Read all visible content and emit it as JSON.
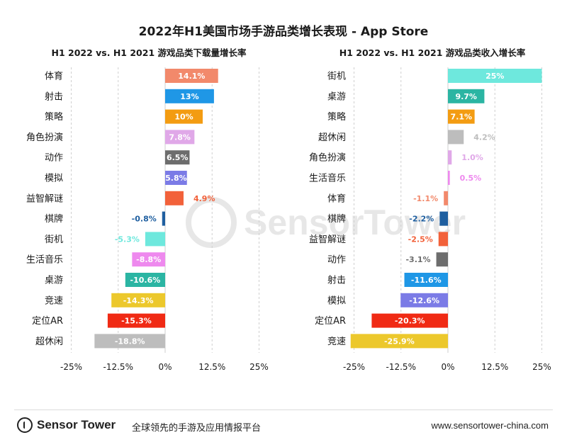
{
  "title": "2022年H1美国市场手游品类增长表现 - App Store",
  "footer": {
    "brand": "Sensor Tower",
    "tagline": "全球领先的手游及应用情报平台",
    "url": "www.sensortower-china.com"
  },
  "watermark": "SensorTower",
  "chart_data": [
    {
      "type": "bar",
      "orientation": "horizontal",
      "title": "H1 2022 vs. H1 2021 游戏品类下载量增长率",
      "xlim": [
        -25,
        25
      ],
      "ticks": [
        -25,
        -12.5,
        0,
        12.5,
        25
      ],
      "tick_labels": [
        "-25%",
        "-12.5%",
        "0%",
        "12.5%",
        "25%"
      ],
      "grid": "dashed vertical",
      "categories": [
        "体育",
        "射击",
        "策略",
        "角色扮演",
        "动作",
        "模拟",
        "益智解谜",
        "棋牌",
        "街机",
        "生活音乐",
        "桌游",
        "竞速",
        "定位AR",
        "超休闲"
      ],
      "values": [
        14.1,
        13,
        10,
        7.8,
        6.5,
        5.8,
        4.9,
        -0.8,
        -5.3,
        -8.8,
        -10.6,
        -14.3,
        -15.3,
        -18.8
      ],
      "labels": [
        "14.1%",
        "13%",
        "10%",
        "7.8%",
        "6.5%",
        "5.8%",
        "4.9%",
        "-0.8%",
        "-5.3%",
        "-8.8%",
        "-10.6%",
        "-14.3%",
        "-15.3%",
        "-18.8%"
      ],
      "colors": [
        "#f2896b",
        "#1f97e6",
        "#f39c12",
        "#e0a8e8",
        "#6d6d6d",
        "#7b7be6",
        "#f2613a",
        "#1f5fa0",
        "#6ee8dd",
        "#ee89ee",
        "#2bb5a3",
        "#ecc82c",
        "#f02a14",
        "#bdbdbd"
      ],
      "label_inside": [
        true,
        true,
        true,
        true,
        true,
        true,
        false,
        false,
        false,
        true,
        true,
        true,
        true,
        true
      ]
    },
    {
      "type": "bar",
      "orientation": "horizontal",
      "title": "H1 2022 vs. H1 2021 游戏品类收入增长率",
      "xlim": [
        -25,
        25
      ],
      "ticks": [
        -25,
        -12.5,
        0,
        12.5,
        25
      ],
      "tick_labels": [
        "-25%",
        "-12.5%",
        "0%",
        "12.5%",
        "25%"
      ],
      "grid": "dashed vertical",
      "categories": [
        "街机",
        "桌游",
        "策略",
        "超休闲",
        "角色扮演",
        "生活音乐",
        "体育",
        "棋牌",
        "益智解谜",
        "动作",
        "射击",
        "模拟",
        "定位AR",
        "竞速"
      ],
      "values": [
        25,
        9.7,
        7.1,
        4.2,
        1.0,
        0.5,
        -1.1,
        -2.2,
        -2.5,
        -3.1,
        -11.6,
        -12.6,
        -20.3,
        -25.9
      ],
      "labels": [
        "25%",
        "9.7%",
        "7.1%",
        "4.2%",
        "1.0%",
        "0.5%",
        "-1.1%",
        "-2.2%",
        "-2.5%",
        "-3.1%",
        "-11.6%",
        "-12.6%",
        "-20.3%",
        "-25.9%"
      ],
      "colors": [
        "#6ee8dd",
        "#2bb5a3",
        "#f39c12",
        "#bdbdbd",
        "#e0a8e8",
        "#ee89ee",
        "#f2896b",
        "#1f5fa0",
        "#f2613a",
        "#6d6d6d",
        "#1f97e6",
        "#7b7be6",
        "#f02a14",
        "#ecc82c"
      ],
      "label_inside": [
        true,
        true,
        true,
        false,
        false,
        false,
        false,
        false,
        false,
        false,
        true,
        true,
        true,
        true
      ]
    }
  ]
}
